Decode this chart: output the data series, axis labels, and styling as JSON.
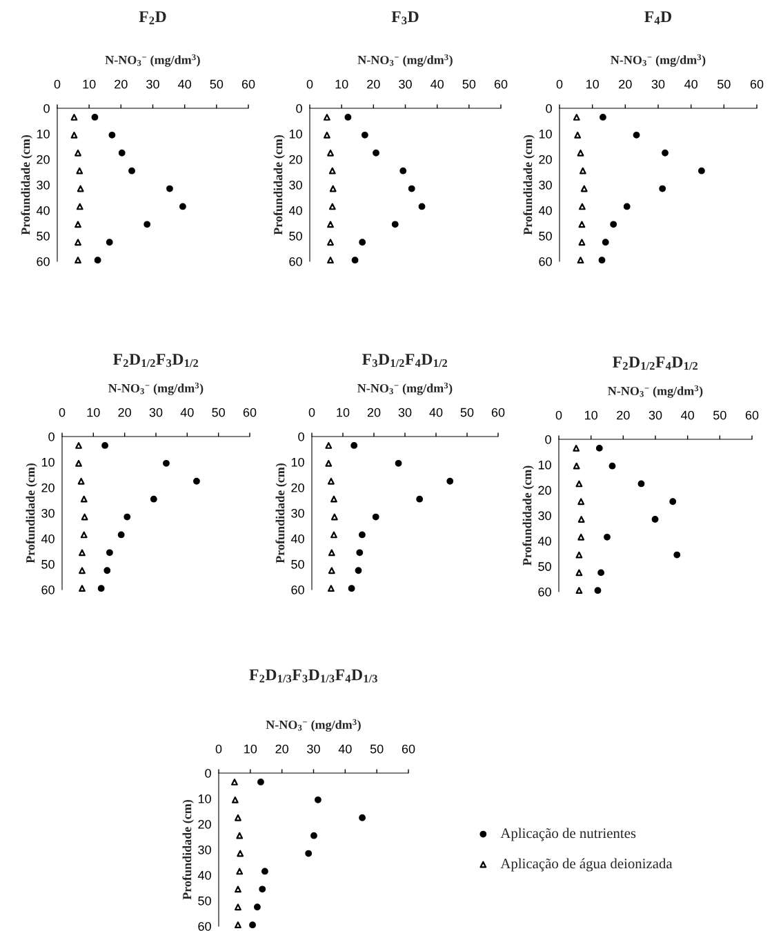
{
  "chart_data": [
    {
      "type": "scatter",
      "title": "F$_{2}$D",
      "xlabel": "N-NO$_{3}$$^{−}$ (mg/dm$^{3}$)",
      "ylabel": "Profundidade (cm)",
      "xlim": [
        0,
        60
      ],
      "xticks": [
        0,
        10,
        20,
        30,
        40,
        50,
        60
      ],
      "ylim": [
        60,
        0
      ],
      "yticks": [
        0,
        10,
        20,
        30,
        40,
        50,
        60
      ],
      "series": [
        {
          "color": "#000000",
          "marker": "circle",
          "x": [
            11.8,
            17.2,
            20.3,
            23.4,
            35.3,
            39.4,
            28.2,
            16.4,
            12.7
          ],
          "values": [
            3.5,
            10.5,
            17.5,
            24.5,
            31.5,
            38.5,
            45.5,
            52.5,
            59.5
          ]
        },
        {
          "color": "#000000",
          "marker": "triangle",
          "x": [
            5.3,
            5.3,
            6.5,
            7.0,
            7.3,
            7.1,
            6.5,
            6.5,
            6.5
          ],
          "values": [
            3.5,
            10.5,
            17.5,
            24.5,
            31.5,
            38.5,
            45.5,
            52.5,
            59.5
          ]
        }
      ]
    },
    {
      "type": "scatter",
      "title": "F$_{3}$D",
      "xlabel": "N-NO$_{3}$$^{−}$ (mg/dm$^{3}$)",
      "ylabel": "Profundidade (cm)",
      "xlim": [
        0,
        60
      ],
      "xticks": [
        0,
        10,
        20,
        30,
        40,
        50,
        60
      ],
      "ylim": [
        60,
        0
      ],
      "yticks": [
        0,
        10,
        20,
        30,
        40,
        50,
        60
      ],
      "series": [
        {
          "color": "#000000",
          "marker": "circle",
          "x": [
            12.0,
            17.3,
            20.8,
            29.3,
            32.0,
            35.2,
            26.8,
            16.5,
            14.2
          ],
          "values": [
            3.5,
            10.5,
            17.5,
            24.5,
            31.5,
            38.5,
            45.5,
            52.5,
            59.5
          ]
        },
        {
          "color": "#000000",
          "marker": "triangle",
          "x": [
            5.4,
            5.4,
            6.5,
            7.1,
            7.3,
            7.1,
            6.5,
            6.5,
            6.5
          ],
          "values": [
            3.5,
            10.5,
            17.5,
            24.5,
            31.5,
            38.5,
            45.5,
            52.5,
            59.5
          ]
        }
      ]
    },
    {
      "type": "scatter",
      "title": "F$_{4}$D",
      "xlabel": "N-NO$_{3}$$^{−}$ (mg/dm$^{3}$)",
      "ylabel": "Profundidade (cm)",
      "xlim": [
        0,
        60
      ],
      "xticks": [
        0,
        10,
        20,
        30,
        40,
        50,
        60
      ],
      "ylim": [
        60,
        0
      ],
      "yticks": [
        0,
        10,
        20,
        30,
        40,
        50,
        60
      ],
      "series": [
        {
          "color": "#000000",
          "marker": "circle",
          "x": [
            13.2,
            23.4,
            32.1,
            43.2,
            31.3,
            20.5,
            16.4,
            14.0,
            12.9
          ],
          "values": [
            3.5,
            10.5,
            17.5,
            24.5,
            31.5,
            38.5,
            45.5,
            52.5,
            59.5
          ]
        },
        {
          "color": "#000000",
          "marker": "triangle",
          "x": [
            5.2,
            5.5,
            6.4,
            7.1,
            7.5,
            6.9,
            6.8,
            6.8,
            6.4
          ],
          "values": [
            3.5,
            10.5,
            17.5,
            24.5,
            31.5,
            38.5,
            45.5,
            52.5,
            59.5
          ]
        }
      ]
    },
    {
      "type": "scatter",
      "title": "F$_{2}$D$_{1/2}$F$_{3}$D$_{1/2}$",
      "xlabel": "N-NO$_{3}$$^{−}$ (mg/dm$^{3}$)",
      "ylabel": "Profundidade (cm)",
      "xlim": [
        0,
        60
      ],
      "xticks": [
        0,
        10,
        20,
        30,
        40,
        50,
        60
      ],
      "ylim": [
        60,
        0
      ],
      "yticks": [
        0,
        10,
        20,
        30,
        40,
        50,
        60
      ],
      "series": [
        {
          "color": "#000000",
          "marker": "circle",
          "x": [
            13.7,
            33.3,
            43.0,
            29.3,
            20.8,
            18.9,
            15.2,
            14.4,
            12.5
          ],
          "values": [
            3.5,
            10.5,
            17.5,
            24.5,
            31.5,
            38.5,
            45.5,
            52.5,
            59.5
          ]
        },
        {
          "color": "#000000",
          "marker": "triangle",
          "x": [
            5.3,
            5.3,
            6.1,
            7.0,
            7.2,
            7.0,
            6.4,
            6.4,
            6.4
          ],
          "values": [
            3.5,
            10.5,
            17.5,
            24.5,
            31.5,
            38.5,
            45.5,
            52.5,
            59.5
          ]
        }
      ]
    },
    {
      "type": "scatter",
      "title": "F$_{3}$D$_{1/2}$F$_{4}$D$_{1/2}$",
      "xlabel": "N-NO$_{3}$$^{−}$ (mg/dm$^{3}$)",
      "ylabel": "Profundidade (cm)",
      "xlim": [
        0,
        60
      ],
      "xticks": [
        0,
        10,
        20,
        30,
        40,
        50,
        60
      ],
      "ylim": [
        60,
        0
      ],
      "yticks": [
        0,
        10,
        20,
        30,
        40,
        50,
        60
      ],
      "series": [
        {
          "color": "#000000",
          "marker": "circle",
          "x": [
            13.6,
            27.9,
            44.5,
            34.7,
            20.6,
            16.2,
            15.4,
            15.0,
            12.8
          ],
          "values": [
            3.5,
            10.5,
            17.5,
            24.5,
            31.5,
            38.5,
            45.5,
            52.5,
            59.5
          ]
        },
        {
          "color": "#000000",
          "marker": "triangle",
          "x": [
            5.4,
            5.4,
            6.2,
            7.1,
            7.3,
            7.1,
            6.4,
            6.4,
            6.2
          ],
          "values": [
            3.5,
            10.5,
            17.5,
            24.5,
            31.5,
            38.5,
            45.5,
            52.5,
            59.5
          ]
        }
      ]
    },
    {
      "type": "scatter",
      "title": "F$_{2}$D$_{1/2}$F$_{4}$D$_{1/2}$",
      "xlabel": "N-NO$_{3}$$^{−}$ (mg/dm$^{3}$)",
      "ylabel": "Profundidade (cm)",
      "xlim": [
        0,
        60
      ],
      "xticks": [
        0,
        10,
        20,
        30,
        40,
        50,
        60
      ],
      "ylim": [
        60,
        0
      ],
      "yticks": [
        0,
        10,
        20,
        30,
        40,
        50,
        60
      ],
      "series": [
        {
          "color": "#000000",
          "marker": "circle",
          "x": [
            12.6,
            16.6,
            25.6,
            35.4,
            29.9,
            15.0,
            36.7,
            13.1,
            12.1
          ],
          "values": [
            3.5,
            10.5,
            17.5,
            24.5,
            31.5,
            38.5,
            45.5,
            52.5,
            59.5
          ]
        },
        {
          "color": "#000000",
          "marker": "triangle",
          "x": [
            5.4,
            5.5,
            6.3,
            6.9,
            7.0,
            6.9,
            6.3,
            6.3,
            6.3
          ],
          "values": [
            3.5,
            10.5,
            17.5,
            24.5,
            31.5,
            38.5,
            45.5,
            52.5,
            59.5
          ]
        }
      ]
    },
    {
      "type": "scatter",
      "title": "F$_{2}$D$_{1/3}$F$_{3}$D$_{1/3}$F$_{4}$D$_{1/3}$",
      "xlabel": "N-NO$_{3}$$^{−}$ (mg/dm$^{3}$)",
      "ylabel": "Profundidade (cm)",
      "xlim": [
        0,
        60
      ],
      "xticks": [
        0,
        10,
        20,
        30,
        40,
        50,
        60
      ],
      "ylim": [
        60,
        0
      ],
      "yticks": [
        0,
        10,
        20,
        30,
        40,
        50,
        60
      ],
      "legend": "right",
      "series": [
        {
          "name": "Aplicação de nutrientes",
          "color": "#000000",
          "marker": "circle",
          "x": [
            13.3,
            31.4,
            45.4,
            30.1,
            28.4,
            14.6,
            13.8,
            12.2,
            10.7
          ],
          "values": [
            3.5,
            10.5,
            17.5,
            24.5,
            31.5,
            38.5,
            45.5,
            52.5,
            59.5
          ]
        },
        {
          "name": "Aplicação de água deionizada",
          "color": "#000000",
          "marker": "triangle",
          "x": [
            5.0,
            5.2,
            6.1,
            6.6,
            6.8,
            6.6,
            6.1,
            6.1,
            6.1
          ],
          "values": [
            3.5,
            10.5,
            17.5,
            24.5,
            31.5,
            38.5,
            45.5,
            52.5,
            59.5
          ]
        }
      ]
    }
  ]
}
